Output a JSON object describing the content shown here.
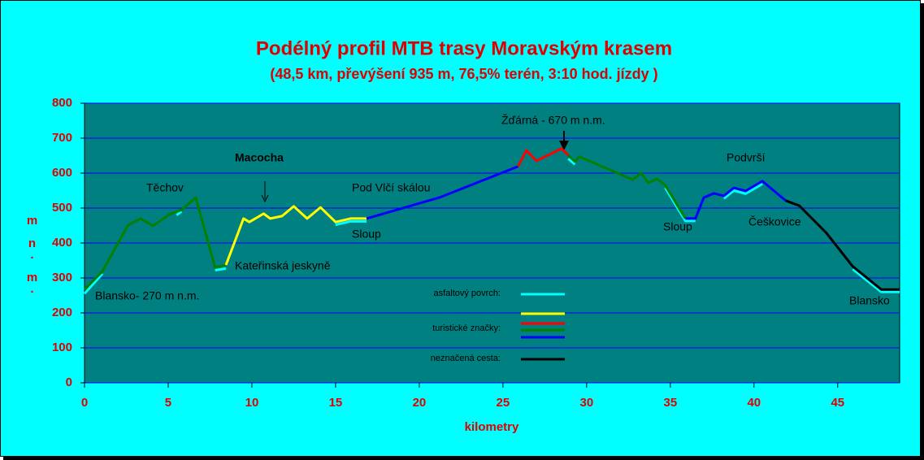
{
  "chart_data": {
    "type": "line",
    "title": "Podélný profil MTB trasy Moravským krasem",
    "subtitle": "(48,5 km, převýšení 935 m, 76,5% terén, 3:10 hod. jízdy )",
    "xlabel": "kilometry",
    "ylabel": "m n. m.",
    "xlim": [
      0,
      48.7
    ],
    "ylim": [
      0,
      800
    ],
    "xticks": [
      0,
      5,
      10,
      15,
      20,
      25,
      30,
      35,
      40,
      45
    ],
    "yticks": [
      0,
      100,
      200,
      300,
      400,
      500,
      600,
      700,
      800
    ],
    "grid": true,
    "series": [
      {
        "color": "#00ffff",
        "x": [
          0,
          1.07
        ],
        "values": [
          255,
          312
        ]
      },
      {
        "color": "#00ffff",
        "x": [
          5.5,
          5.8
        ],
        "values": [
          480,
          490
        ]
      },
      {
        "color": "#00ffff",
        "x": [
          7.8,
          8.45
        ],
        "values": [
          322,
          327
        ]
      },
      {
        "color": "#00ffff",
        "x": [
          15.0,
          15.9,
          16.85
        ],
        "values": [
          452,
          462,
          462
        ]
      },
      {
        "color": "#00ffff",
        "x": [
          28.9,
          29.3
        ],
        "values": [
          641,
          625
        ]
      },
      {
        "color": "#00ffff",
        "x": [
          34.7,
          35.9,
          36.5
        ],
        "values": [
          558,
          463,
          463
        ]
      },
      {
        "color": "#00ffff",
        "x": [
          38.2,
          38.8,
          39.5,
          40.5
        ],
        "values": [
          527,
          550,
          541,
          569
        ]
      },
      {
        "color": "#00ffff",
        "x": [
          45.9,
          47.6,
          48.7
        ],
        "values": [
          325,
          260,
          260
        ]
      },
      {
        "color": "#008000",
        "x": [
          0,
          1.07,
          2.6,
          3.35,
          4.1,
          5.05,
          5.8,
          6.65,
          7.8,
          8.45
        ],
        "values": [
          267,
          319,
          451,
          470,
          449,
          481,
          495,
          530,
          330,
          337
        ]
      },
      {
        "color": "#ffff00",
        "x": [
          8.45,
          9.5,
          9.85,
          10.7,
          11.1,
          11.8,
          12.5,
          13.3,
          14.1,
          15.0,
          15.9,
          16.85
        ],
        "values": [
          337,
          470,
          460,
          484,
          470,
          477,
          505,
          470,
          502,
          460,
          470,
          470
        ]
      },
      {
        "color": "#0000ff",
        "x": [
          16.85,
          21.2,
          25.9
        ],
        "values": [
          470,
          530,
          619
        ]
      },
      {
        "color": "#ff0000",
        "x": [
          25.9,
          26.4,
          27.0,
          28.5,
          28.9
        ],
        "values": [
          619,
          665,
          635,
          670,
          651
        ]
      },
      {
        "color": "#008000",
        "x": [
          28.9,
          29.3,
          29.56,
          32.76,
          33.25,
          33.7,
          34.2,
          34.7,
          35.9
        ],
        "values": [
          651,
          633,
          647,
          581,
          600,
          572,
          584,
          565,
          470
        ]
      },
      {
        "color": "#0000ff",
        "x": [
          35.9,
          36.5,
          37.0,
          37.6,
          38.2,
          38.8,
          39.5,
          40.5,
          41.9
        ],
        "values": [
          470,
          470,
          530,
          542,
          535,
          558,
          549,
          577,
          521
        ]
      },
      {
        "color": "#000000",
        "x": [
          41.9,
          42.7,
          44.3,
          45.9,
          47.6,
          48.7
        ],
        "values": [
          521,
          507,
          430,
          333,
          267,
          267
        ]
      }
    ],
    "legend": [
      {
        "label": "asfaltový povrch:",
        "colors": [
          "#00ffff",
          "#ffff00"
        ]
      },
      {
        "label": "turistické značky:",
        "colors": [
          "#ff0000",
          "#008000",
          "#0000ff"
        ]
      },
      {
        "label": "neznačená cesta:",
        "colors": [
          "#000000"
        ]
      }
    ],
    "annotations": [
      "Blansko- 270 m n.m.",
      "Těchov",
      "Macocha",
      "Kateřinská jeskyně",
      "Pod Vlčí skálou",
      "Sloup",
      "Žďárná - 670 m n.m.",
      "Sloup",
      "Podvrší",
      "Češkovice",
      "Blansko"
    ]
  }
}
